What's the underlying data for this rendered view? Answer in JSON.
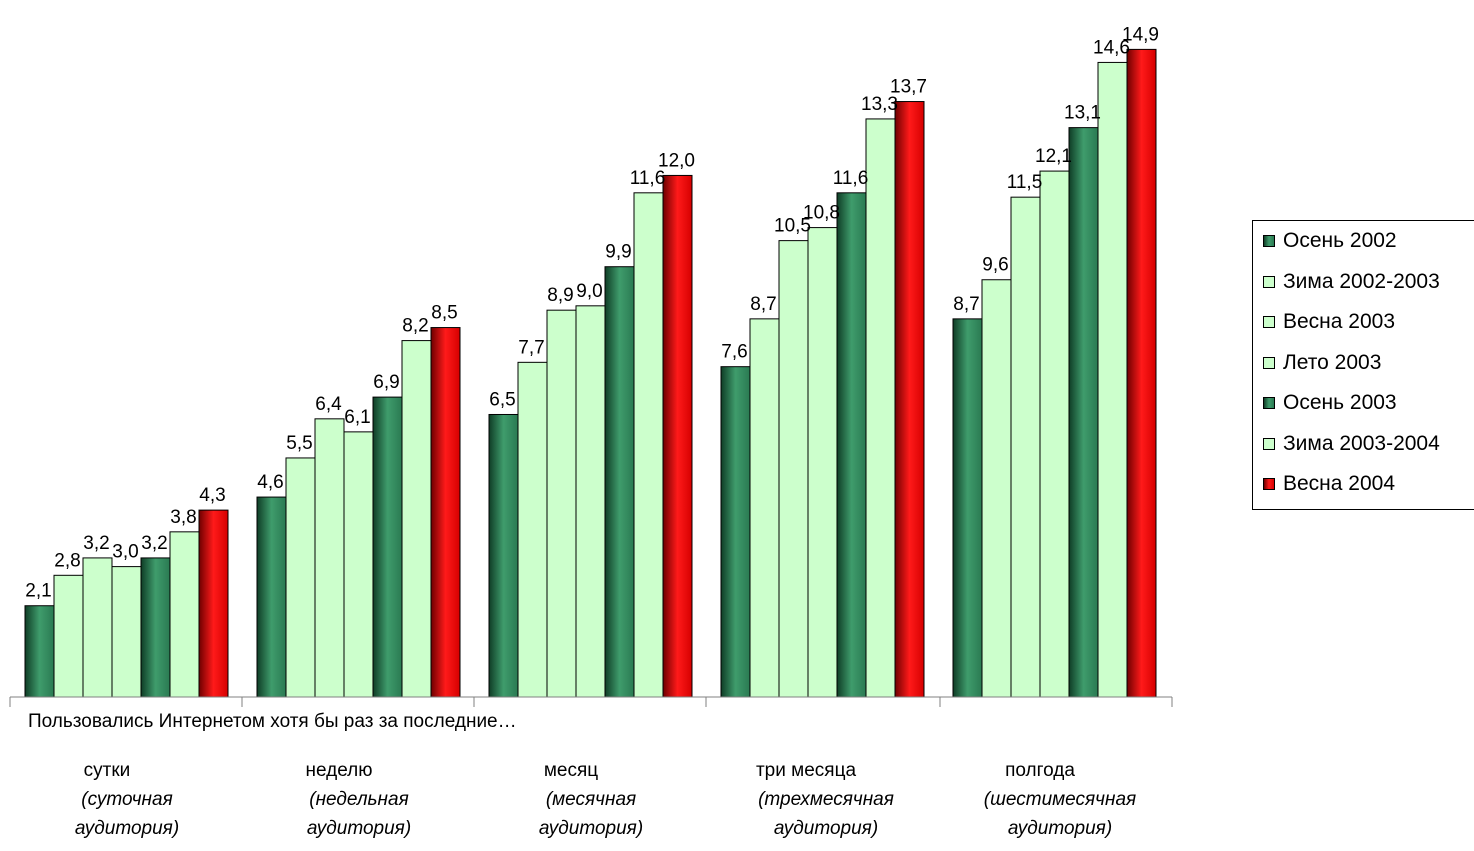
{
  "chart_data": {
    "type": "bar",
    "title": "",
    "xlabel": "",
    "ylabel": "",
    "ylim": [
      0,
      15
    ],
    "grid": false,
    "legend_position": "right",
    "axis_note": "Пользовались Интернетом хотя бы раз за последние…",
    "categories": [
      {
        "name": "сутки",
        "sub": "(суточная аудитория)"
      },
      {
        "name": "неделю",
        "sub": "(недельная аудитория)"
      },
      {
        "name": "месяц",
        "sub": "(месячная аудитория)"
      },
      {
        "name": "три месяца",
        "sub": "(трехмесячная аудитория)"
      },
      {
        "name": "полгода",
        "sub": "(шестимесячная аудитория)"
      }
    ],
    "series": [
      {
        "name": "Осень 2002",
        "color": "#2e7d57",
        "style": "dark-green",
        "values": [
          2.1,
          4.6,
          6.5,
          7.6,
          8.7
        ]
      },
      {
        "name": "Зима 2002-2003",
        "color": "#ccffcc",
        "style": "light-green",
        "values": [
          2.8,
          5.5,
          7.7,
          8.7,
          9.6
        ]
      },
      {
        "name": "Весна 2003",
        "color": "#ccffcc",
        "style": "light-green",
        "values": [
          3.2,
          6.4,
          8.9,
          10.5,
          11.5
        ]
      },
      {
        "name": "Лето 2003",
        "color": "#ccffcc",
        "style": "light-green",
        "values": [
          3.0,
          6.1,
          9.0,
          10.8,
          12.1
        ]
      },
      {
        "name": "Осень 2003",
        "color": "#2e7d57",
        "style": "dark-green",
        "values": [
          3.2,
          6.9,
          9.9,
          11.6,
          13.1
        ]
      },
      {
        "name": "Зима 2003-2004",
        "color": "#ccffcc",
        "style": "light-green",
        "values": [
          3.8,
          8.2,
          11.6,
          13.3,
          14.6
        ]
      },
      {
        "name": "Весна 2004",
        "color": "#e00000",
        "style": "red",
        "values": [
          4.3,
          8.5,
          12.0,
          13.7,
          14.9
        ]
      }
    ],
    "value_labels": [
      [
        "2,1",
        "2,8",
        "3,2",
        "3,0",
        "3,2",
        "3,8",
        "4,3"
      ],
      [
        "4,6",
        "5,5",
        "6,4",
        "6,1",
        "6,9",
        "8,2",
        "8,5"
      ],
      [
        "6,5",
        "7,7",
        "8,9",
        "9,0",
        "9,9",
        "11,6",
        "12,0"
      ],
      [
        "7,6",
        "8,7",
        "10,5",
        "10,8",
        "11,6",
        "13,3",
        "13,7"
      ],
      [
        "8,7",
        "9,6",
        "11,5",
        "12,1",
        "13,1",
        "14,6",
        "14,9"
      ]
    ]
  }
}
